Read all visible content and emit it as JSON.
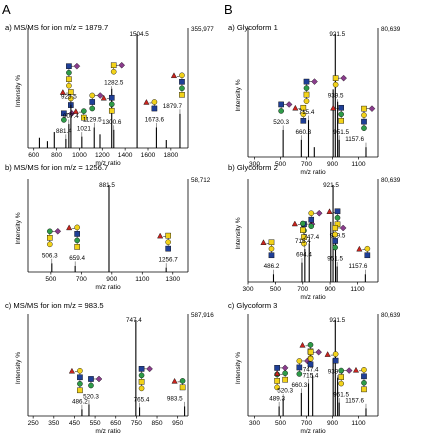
{
  "figure": {
    "col_A": "A",
    "col_B": "B"
  },
  "colors": {
    "ink": "#000000",
    "glcnac_blue": "#1f3f97",
    "galactose_yellow": "#f2d21a",
    "mannose_green": "#2e9b48",
    "fucose_red": "#c8241e",
    "sialic_purple": "#8a3c8c"
  },
  "chart_data": [
    {
      "type": "bar",
      "title": "a) MS/MS for ion m/z = 1879.7",
      "xlabel": "m/z ratio",
      "ylabel": "Intensity %",
      "xlim": [
        550,
        1950
      ],
      "ylim": [
        0,
        100
      ],
      "xticks": [
        600,
        800,
        1000,
        1200,
        1400,
        1600,
        1800
      ],
      "max_intensity_label": "355,977",
      "peaks": [
        {
          "mz": 650,
          "i": 9
        },
        {
          "mz": 720,
          "i": 6
        },
        {
          "mz": 780,
          "i": 14
        },
        {
          "mz": 881.4,
          "i": 8,
          "label": "881.4"
        },
        {
          "mz": 907.4,
          "i": 21,
          "label": "907.4"
        },
        {
          "mz": 925.5,
          "i": 38,
          "label": "925.5"
        },
        {
          "mz": 1021,
          "i": 10,
          "label": "1021"
        },
        {
          "mz": 1129.5,
          "i": 18,
          "label": "1129.5"
        },
        {
          "mz": 1180,
          "i": 12
        },
        {
          "mz": 1282.5,
          "i": 52,
          "label": "1282.5"
        },
        {
          "mz": 1300.6,
          "i": 16,
          "label": "1300.6"
        },
        {
          "mz": 1504.5,
          "i": 100,
          "label": "1504.5"
        },
        {
          "mz": 1673.6,
          "i": 18,
          "label": "1673.6"
        },
        {
          "mz": 1760,
          "i": 7
        },
        {
          "mz": 1879.7,
          "i": 30,
          "label": "1879.7"
        }
      ]
    },
    {
      "type": "bar",
      "title": "b) MS/MS for ion m/z = 1256.7",
      "xlabel": "m/z ratio",
      "ylabel": "Intensity %",
      "xlim": [
        350,
        1400
      ],
      "ylim": [
        0,
        100
      ],
      "xticks": [
        500,
        700,
        900,
        1100,
        1300
      ],
      "max_intensity_label": "58,712",
      "peaks": [
        {
          "mz": 506.3,
          "i": 10,
          "label": "506.3"
        },
        {
          "mz": 659.4,
          "i": 7,
          "label": "659.4"
        },
        {
          "mz": 881.5,
          "i": 100,
          "label": "881.5"
        },
        {
          "mz": 1256.7,
          "i": 5,
          "label": "1256.7"
        }
      ]
    },
    {
      "type": "bar",
      "title": "c) MS/MS for ion m/z = 983.5",
      "xlabel": "m/z ratio",
      "ylabel": "Intensity %",
      "xlim": [
        225,
        1000
      ],
      "ylim": [
        0,
        100
      ],
      "xticks": [
        250,
        350,
        450,
        550,
        650,
        750,
        850,
        950
      ],
      "max_intensity_label": "587,916",
      "peaks": [
        {
          "mz": 486.2,
          "i": 7,
          "label": "486.2"
        },
        {
          "mz": 520.3,
          "i": 12,
          "label": "520.3"
        },
        {
          "mz": 747.4,
          "i": 100,
          "label": "747.4"
        },
        {
          "mz": 765.4,
          "i": 9,
          "label": "765.4"
        },
        {
          "mz": 983.5,
          "i": 10,
          "label": "983.5"
        }
      ]
    },
    {
      "type": "bar",
      "title": "a) Glycoform 1",
      "xlabel": "m/z ratio",
      "ylabel": "Intensity %",
      "xlim": [
        250,
        1250
      ],
      "ylim": [
        0,
        100
      ],
      "xticks": [
        300,
        500,
        700,
        900,
        1100
      ],
      "max_intensity_label": "80,639",
      "peaks": [
        {
          "mz": 520.3,
          "i": 22,
          "label": "520.3"
        },
        {
          "mz": 660.3,
          "i": 14,
          "label": "660.3"
        },
        {
          "mz": 715.4,
          "i": 30,
          "label": "715.4"
        },
        {
          "mz": 760,
          "i": 8
        },
        {
          "mz": 905,
          "i": 55
        },
        {
          "mz": 921.5,
          "i": 100,
          "label": "921.5"
        },
        {
          "mz": 939.5,
          "i": 45,
          "label": "939.5"
        },
        {
          "mz": 951.5,
          "i": 14,
          "label": "951.5"
        },
        {
          "mz": 1157.6,
          "i": 8,
          "label": "1157.6"
        }
      ]
    },
    {
      "type": "bar",
      "title": "b) Glycoform 2",
      "xlabel": "m/z ratio",
      "ylabel": "Intensity %",
      "xlim": [
        300,
        1250
      ],
      "ylim": [
        0,
        100
      ],
      "xticks": [
        300,
        500,
        700,
        900,
        1100
      ],
      "max_intensity_label": "80,639",
      "peaks": [
        {
          "mz": 486.2,
          "i": 8,
          "label": "486.2"
        },
        {
          "mz": 694.4,
          "i": 20,
          "label": "694.4"
        },
        {
          "mz": 715.4,
          "i": 34,
          "label": "715.4"
        },
        {
          "mz": 747.4,
          "i": 40,
          "label": "747.4"
        },
        {
          "mz": 905,
          "i": 62
        },
        {
          "mz": 921.5,
          "i": 100,
          "label": "921.5"
        },
        {
          "mz": 939.5,
          "i": 42,
          "label": "939.5"
        },
        {
          "mz": 951.5,
          "i": 16,
          "label": "951.5"
        },
        {
          "mz": 1157.6,
          "i": 8,
          "label": "1157.6"
        }
      ]
    },
    {
      "type": "bar",
      "title": "c) Glycoform 3",
      "xlabel": "m/z ratio",
      "ylabel": "Intensity %",
      "xlim": [
        250,
        1250
      ],
      "ylim": [
        0,
        100
      ],
      "xticks": [
        300,
        500,
        700,
        900,
        1100
      ],
      "max_intensity_label": "80,639",
      "peaks": [
        {
          "mz": 489.3,
          "i": 10,
          "label": "489.3"
        },
        {
          "mz": 520.3,
          "i": 18,
          "label": "520.3"
        },
        {
          "mz": 660.3,
          "i": 24,
          "label": "660.3"
        },
        {
          "mz": 715.4,
          "i": 34,
          "label": "715.4"
        },
        {
          "mz": 747.4,
          "i": 42,
          "label": "747.4"
        },
        {
          "mz": 905,
          "i": 60
        },
        {
          "mz": 921.5,
          "i": 100,
          "label": "921.5"
        },
        {
          "mz": 939.5,
          "i": 40,
          "label": "939.5"
        },
        {
          "mz": 951.5,
          "i": 14,
          "label": "951.5"
        },
        {
          "mz": 1157.6,
          "i": 8,
          "label": "1157.6"
        }
      ]
    }
  ]
}
